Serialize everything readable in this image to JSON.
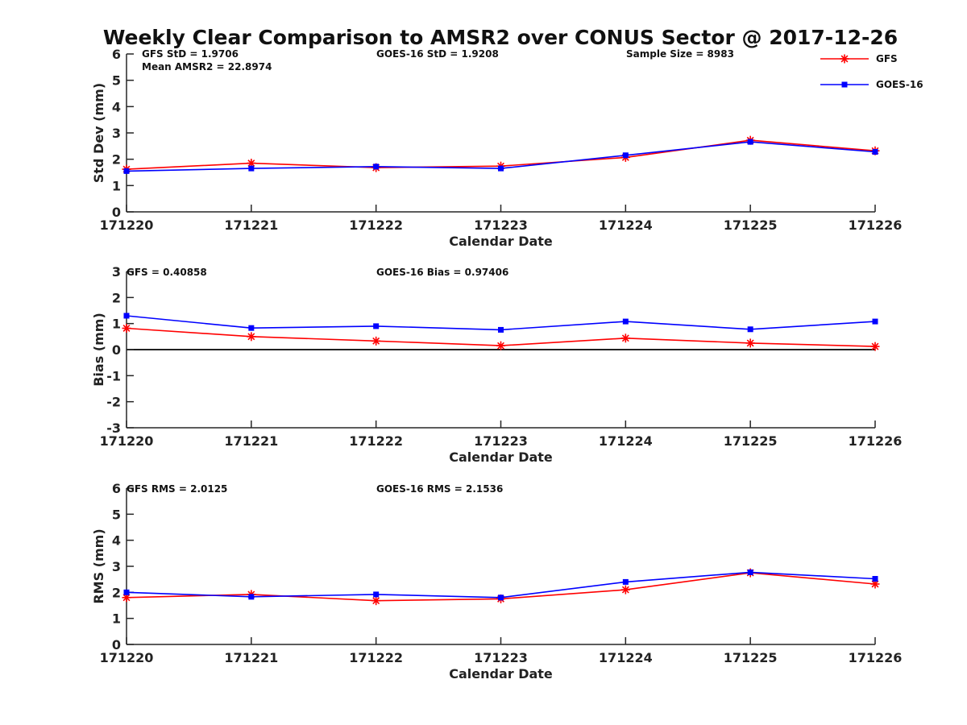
{
  "title": "Weekly Clear Comparison to AMSR2 over CONUS Sector @ 2017-12-26",
  "colors": {
    "gfs": "#ff0000",
    "goes16": "#0000ff",
    "axis": "#262626",
    "zero_line": "#000000"
  },
  "legend": {
    "placement": "top-right",
    "entries": [
      {
        "label": "GFS",
        "color": "#ff0000",
        "marker": "asterisk"
      },
      {
        "label": "GOES-16",
        "color": "#0000ff",
        "marker": "square"
      }
    ]
  },
  "chart_data": [
    {
      "type": "line",
      "xlabel": "Calendar Date",
      "ylabel": "Std Dev (mm)",
      "ylim": [
        0,
        6
      ],
      "yticks": [
        "0",
        "1",
        "2",
        "3",
        "4",
        "5",
        "6"
      ],
      "categories": [
        "171220",
        "171221",
        "171222",
        "171223",
        "171224",
        "171225",
        "171226"
      ],
      "series": [
        {
          "name": "GFS",
          "values": [
            1.62,
            1.85,
            1.68,
            1.74,
            2.07,
            2.72,
            2.32
          ]
        },
        {
          "name": "GOES-16",
          "values": [
            1.55,
            1.65,
            1.72,
            1.65,
            2.15,
            2.66,
            2.28
          ]
        }
      ],
      "annotations": [
        "GFS StD = 1.9706",
        "Mean AMSR2 = 22.8974",
        "GOES-16 StD = 1.9208",
        "Sample Size = 8983"
      ]
    },
    {
      "type": "line",
      "xlabel": "Calendar Date",
      "ylabel": "Bias (mm)",
      "ylim": [
        -3,
        3
      ],
      "yticks": [
        "-3",
        "-2",
        "-1",
        "0",
        "1",
        "2",
        "3"
      ],
      "zero_line": true,
      "categories": [
        "171220",
        "171221",
        "171222",
        "171223",
        "171224",
        "171225",
        "171226"
      ],
      "series": [
        {
          "name": "GFS",
          "values": [
            0.82,
            0.5,
            0.33,
            0.15,
            0.44,
            0.25,
            0.12
          ]
        },
        {
          "name": "GOES-16",
          "values": [
            1.3,
            0.83,
            0.9,
            0.76,
            1.08,
            0.78,
            1.08
          ]
        }
      ],
      "annotations": [
        "GFS = 0.40858",
        "GOES-16 Bias  = 0.97406"
      ]
    },
    {
      "type": "line",
      "xlabel": "Calendar Date",
      "ylabel": "RMS (mm)",
      "ylim": [
        0,
        6
      ],
      "yticks": [
        "0",
        "1",
        "2",
        "3",
        "4",
        "5",
        "6"
      ],
      "categories": [
        "171220",
        "171221",
        "171222",
        "171223",
        "171224",
        "171225",
        "171226"
      ],
      "series": [
        {
          "name": "GFS",
          "values": [
            1.8,
            1.92,
            1.68,
            1.75,
            2.1,
            2.75,
            2.32
          ]
        },
        {
          "name": "GOES-16",
          "values": [
            2.0,
            1.83,
            1.92,
            1.8,
            2.4,
            2.77,
            2.52
          ]
        }
      ],
      "annotations": [
        "GFS RMS = 2.0125",
        "GOES-16 RMS = 2.1536"
      ]
    }
  ]
}
